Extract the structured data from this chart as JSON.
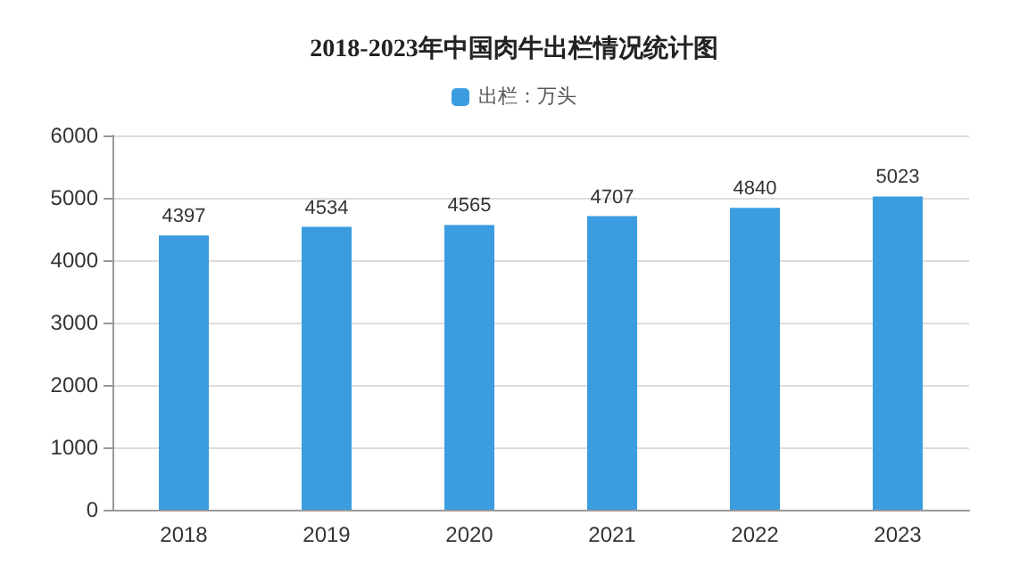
{
  "chart_data": {
    "type": "bar",
    "title": "2018-2023年中国肉牛出栏情况统计图",
    "categories": [
      "2018",
      "2019",
      "2020",
      "2021",
      "2022",
      "2023"
    ],
    "series": [
      {
        "name": "出栏：万头",
        "color": "#3b9de0",
        "values": [
          4397,
          4534,
          4565,
          4707,
          4840,
          5023
        ]
      }
    ],
    "ylim": [
      0,
      6000
    ],
    "yticks": [
      0,
      1000,
      2000,
      3000,
      4000,
      5000,
      6000
    ],
    "grid": "y",
    "legend": "top",
    "data_labels": true
  }
}
